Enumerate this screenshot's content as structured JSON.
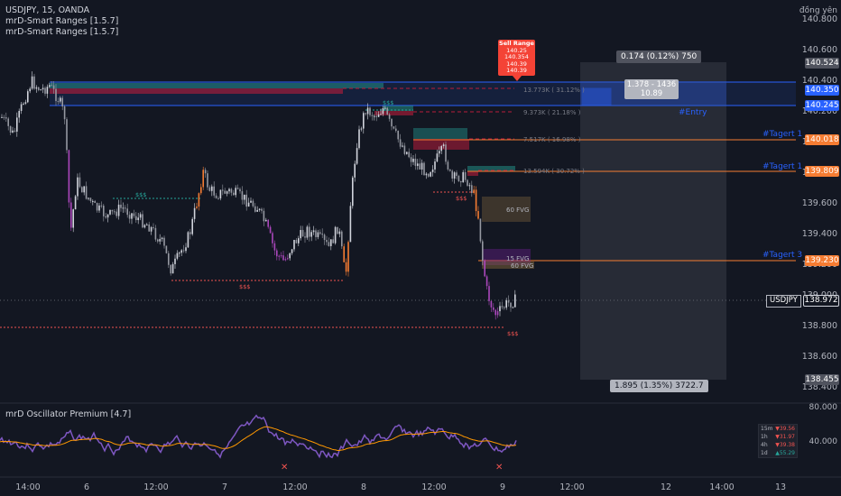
{
  "header": {
    "symbol_line": "USDJPY, 15, OANDA",
    "indicators": [
      "mrD-Smart Ranges [1.5.7]",
      "mrD-Smart Ranges [1.5.7]"
    ],
    "currency_label": "đồng yên"
  },
  "price_axis": {
    "labels": [
      "140.800",
      "140.600",
      "140.400",
      "140.200",
      "140.000",
      "139.800",
      "139.600",
      "139.400",
      "139.200",
      "139.000",
      "138.800",
      "138.600",
      "138.400"
    ],
    "tags": [
      {
        "text": "140.524",
        "bg": "#50535e",
        "fg": "#ffffff"
      },
      {
        "text": "140.350",
        "bg": "#2962ff",
        "fg": "#ffffff"
      },
      {
        "text": "140.245",
        "bg": "#2962ff",
        "fg": "#ffffff"
      },
      {
        "text": "140.018",
        "bg": "#f57c32",
        "fg": "#ffffff"
      },
      {
        "text": "139.809",
        "bg": "#f57c32",
        "fg": "#ffffff"
      },
      {
        "text": "139.230",
        "bg": "#f57c32",
        "fg": "#ffffff"
      },
      {
        "text": "138.972",
        "bg": "#131722",
        "fg": "#ffffff"
      },
      {
        "text": "138.455",
        "bg": "#50535e",
        "fg": "#ffffff"
      }
    ],
    "symbol_tag": "USDJPY"
  },
  "time_axis": [
    "14:00",
    "6",
    "12:00",
    "7",
    "12:00",
    "8",
    "12:00",
    "9",
    "12:00",
    "12",
    "14:00",
    "13"
  ],
  "sell_range": {
    "title": "Sell Range",
    "values": [
      "140.25",
      "140.354",
      "140.39",
      "140.39"
    ]
  },
  "position_tool": {
    "top_label": "0.174 (0.12%) 750",
    "mid_label_1": "1.378 - 1436",
    "mid_label_2": "10.89",
    "bottom_label": "1.895 (1.35%) 3722.7"
  },
  "levels": {
    "entry": "#Entry",
    "target1a": "#Tagert 1",
    "target1b": "#Tagert 1",
    "target3": "#Tagert 3"
  },
  "zone_labels": [
    "13.773K ( 31.12% )",
    "9.373K ( 21.18% )",
    "7.517K ( 16.98% )",
    "13.594K ( 30.72% )"
  ],
  "fvg_labels": [
    "60 FVG",
    "15 FVG",
    "60 FVG"
  ],
  "liquidity_label": "$$$",
  "oscillator": {
    "title": "mrD Oscillator Premium [4.7]",
    "axis": [
      "80.000",
      "40.000"
    ],
    "table": [
      {
        "tf": "15m",
        "val": "▼39.56",
        "color": "#ef5350"
      },
      {
        "tf": "1h",
        "val": "▼31.97",
        "color": "#ef5350"
      },
      {
        "tf": "4h",
        "val": "▼39.38",
        "color": "#ef5350"
      },
      {
        "tf": "1d",
        "val": "▲55.29",
        "color": "#26a69a"
      }
    ]
  },
  "colors": {
    "background": "#131722",
    "accent_blue": "#2962ff",
    "target_orange": "#f57c32",
    "sell_red": "#f44336",
    "zone_green": "#26a69a",
    "zone_red": "#b71c3a",
    "fvg_orange": "#8d6e3f",
    "fvg_purple": "#7b1fa2",
    "osc_purple": "#7e57c2",
    "osc_orange": "#ff9800"
  }
}
